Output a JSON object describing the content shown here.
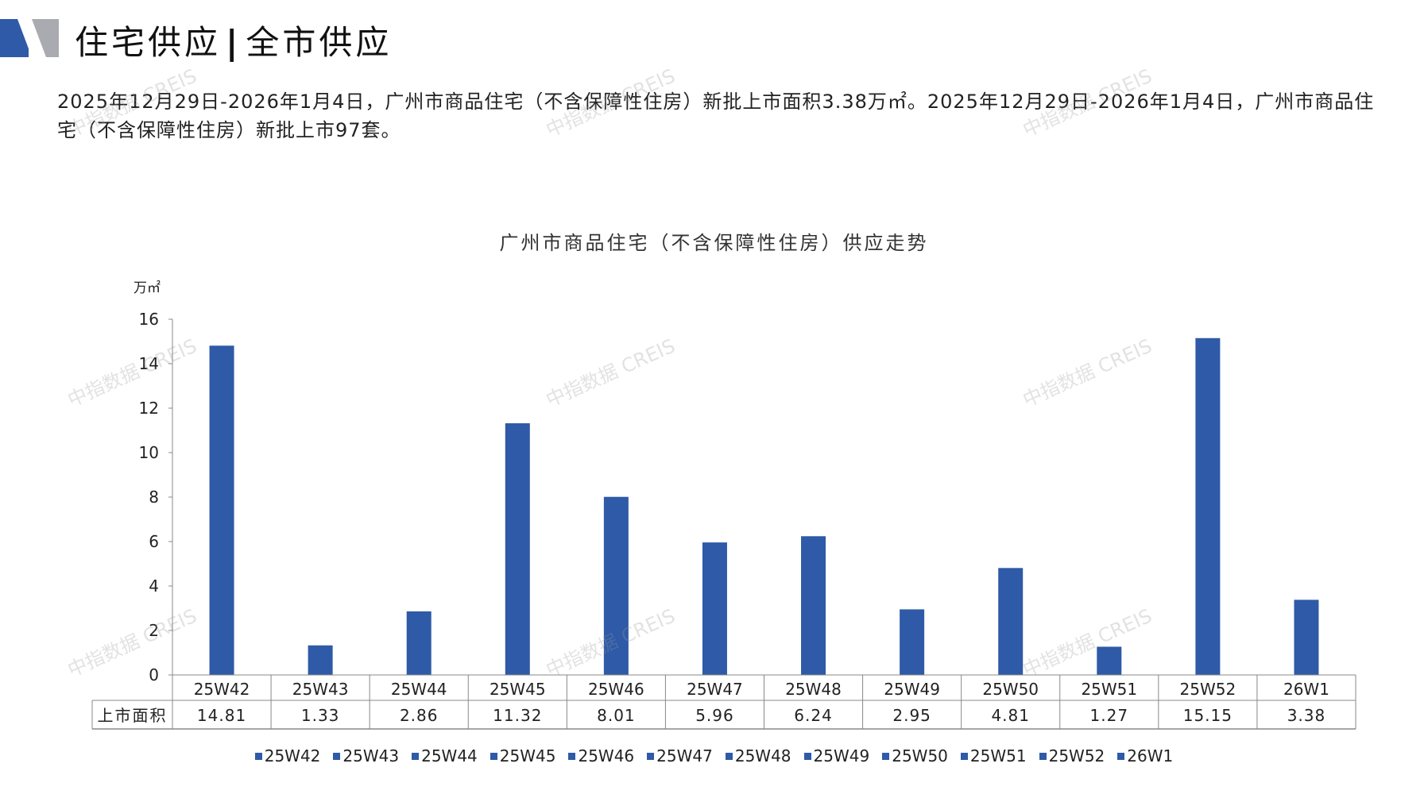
{
  "header": {
    "title_left": "住宅供应",
    "title_sep": "|",
    "title_right": "全市供应"
  },
  "summary": "2025年12月29日-2026年1月4日，广州市商品住宅（不含保障性住房）新批上市面积3.38万㎡。2025年12月29日-2026年1月4日，广州市商品住宅（不含保障性住房）新批上市97套。",
  "watermark": "中指数据 CREIS",
  "colors": {
    "bar": "#2e5aa7",
    "logo_blue": "#2e5aa7",
    "logo_gray": "#a9abb0"
  },
  "chart_data": {
    "type": "bar",
    "title": "广州市商品住宅（不含保障性住房）供应走势",
    "ylabel": "万㎡",
    "ylim": [
      0,
      16
    ],
    "yticks": [
      0,
      2,
      4,
      6,
      8,
      10,
      12,
      14,
      16
    ],
    "categories": [
      "25W42",
      "25W43",
      "25W44",
      "25W45",
      "25W46",
      "25W47",
      "25W48",
      "25W49",
      "25W50",
      "25W51",
      "25W52",
      "26W1"
    ],
    "series": [
      {
        "name": "上市面积",
        "values": [
          14.81,
          1.33,
          2.86,
          11.32,
          8.01,
          5.96,
          6.24,
          2.95,
          4.81,
          1.27,
          15.15,
          3.38
        ],
        "labels": [
          "14.81",
          "1.33",
          "2.86",
          "11.32",
          "8.01",
          "5.96",
          "6.24",
          "2.95",
          "4.81",
          "1.27",
          "15.15",
          "3.38"
        ]
      }
    ],
    "legend_position": "bottom",
    "grid": false,
    "data_table": true
  }
}
